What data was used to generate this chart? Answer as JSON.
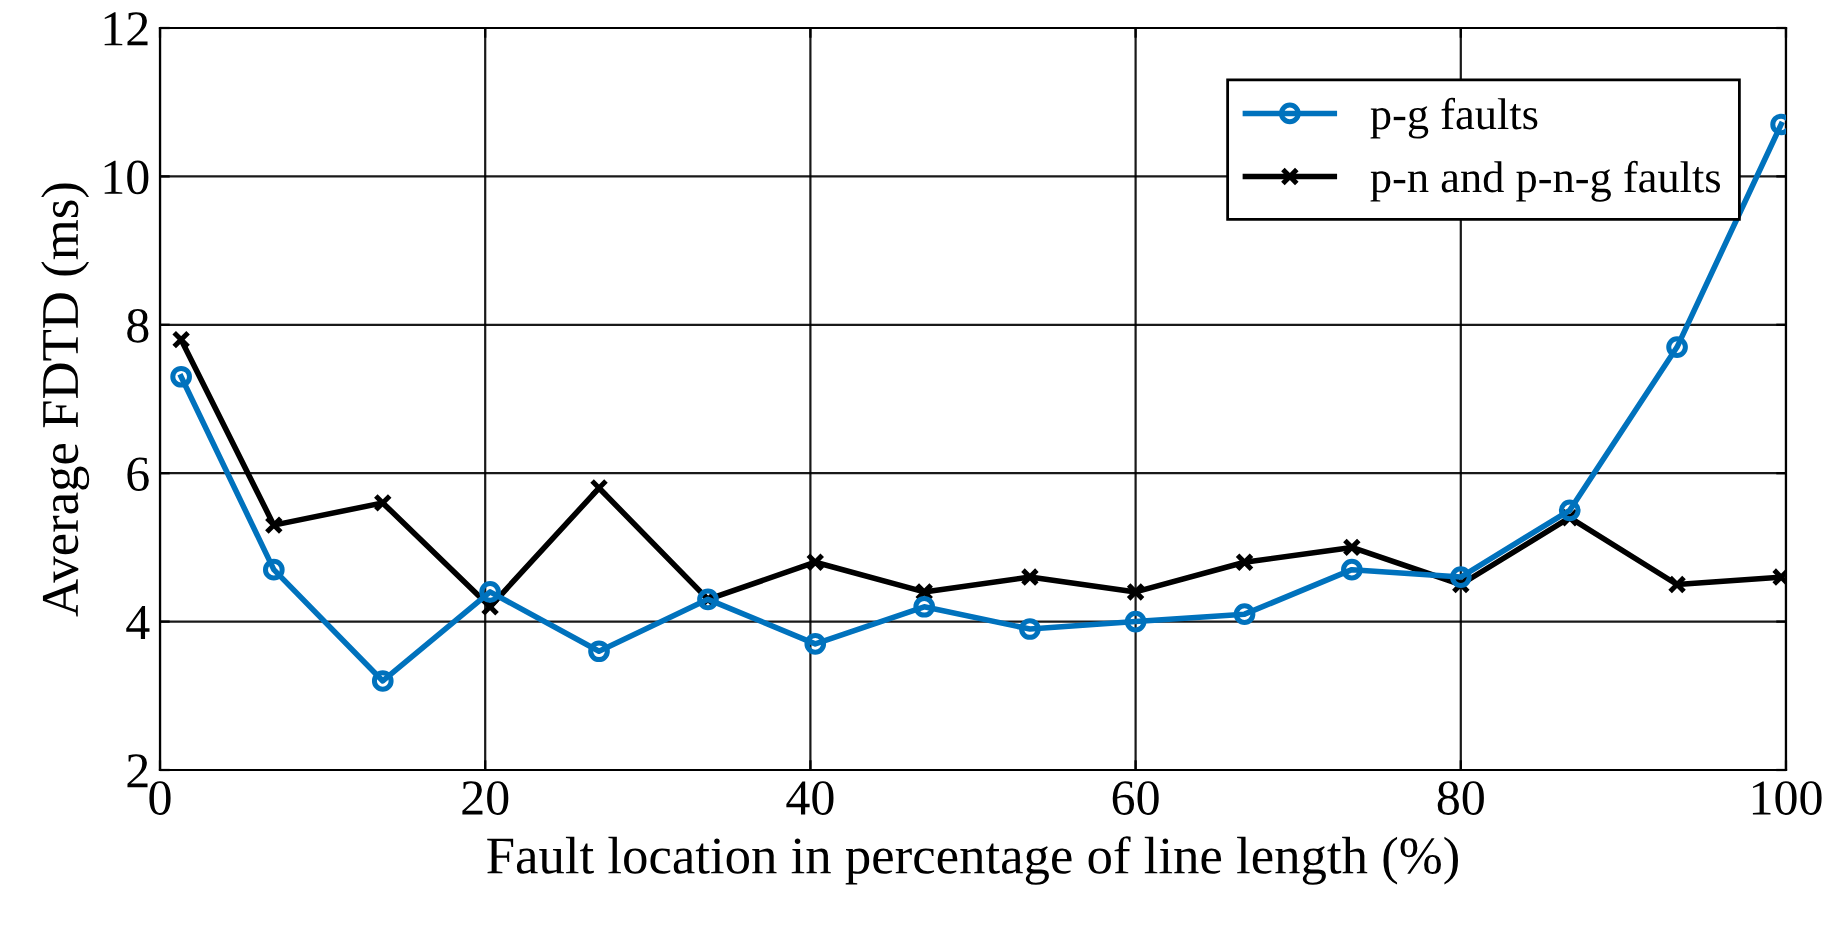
{
  "chart_data": {
    "type": "line",
    "xlabel": "Fault location in percentage of line length (%)",
    "ylabel": "Average FDTD (ms)",
    "x": [
      1.3,
      7,
      13.7,
      20.3,
      27,
      33.7,
      40.3,
      47,
      53.5,
      60,
      66.7,
      73.3,
      80,
      86.7,
      93.3,
      99.7
    ],
    "series": [
      {
        "name": "p-g faults",
        "color": "#0072bd",
        "marker": "circle",
        "values": [
          7.3,
          4.7,
          3.2,
          4.4,
          3.6,
          4.3,
          3.7,
          4.2,
          3.9,
          4.0,
          4.1,
          4.7,
          4.6,
          5.5,
          7.7,
          10.7
        ]
      },
      {
        "name": "p-n and p-n-g faults",
        "color": "#000000",
        "marker": "cross",
        "values": [
          7.8,
          5.3,
          5.6,
          4.2,
          5.8,
          4.3,
          4.8,
          4.4,
          4.6,
          4.4,
          4.8,
          5.0,
          4.5,
          5.4,
          4.5,
          4.6
        ]
      }
    ],
    "xlim": [
      0,
      100
    ],
    "xticks": [
      0,
      20,
      40,
      60,
      80,
      100
    ],
    "ylim": [
      2,
      12
    ],
    "yticks": [
      2,
      4,
      6,
      8,
      10,
      12
    ],
    "grid": true,
    "legend": "top right",
    "line_style": "solid"
  }
}
